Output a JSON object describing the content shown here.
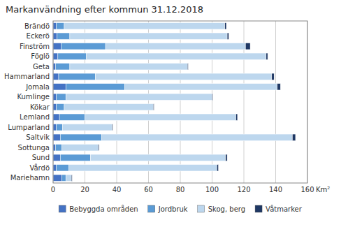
{
  "chart_data": {
    "type": "bar",
    "orientation": "horizontal",
    "stacked": true,
    "title": "Markanvändning efter kommun 31.12.2018",
    "categories": [
      "Brändö",
      "Eckerö",
      "Finström",
      "Föglö",
      "Geta",
      "Hammarland",
      "Jomala",
      "Kumlinge",
      "Kökar",
      "Lemland",
      "Lumparland",
      "Saltvik",
      "Sottunga",
      "Sund",
      "Vårdö",
      "Mariehamn"
    ],
    "series": [
      {
        "name": "Bebyggda områden",
        "color": "#4472C4",
        "values": [
          2.0,
          2.5,
          5.0,
          3.0,
          1.5,
          3.5,
          8.0,
          2.0,
          2.0,
          4.0,
          2.0,
          4.5,
          1.5,
          4.5,
          2.0,
          5.5
        ]
      },
      {
        "name": "Jordbruk",
        "color": "#5B9BD5",
        "values": [
          5.0,
          8.0,
          28.0,
          18.0,
          9.0,
          23.0,
          37.0,
          6.0,
          5.0,
          16.0,
          4.0,
          26.0,
          4.0,
          19.0,
          8.0,
          2.5
        ]
      },
      {
        "name": "Skog, berg",
        "color": "#BDD7EE",
        "values": [
          101.0,
          99.0,
          88.0,
          113.0,
          74.0,
          111.0,
          96.0,
          92.0,
          56.0,
          95.0,
          31.0,
          120.0,
          23.0,
          85.0,
          93.0,
          3.5
        ]
      },
      {
        "name": "Våtmarker",
        "color": "#1F3864",
        "values": [
          1.0,
          1.0,
          3.0,
          1.0,
          0.5,
          1.5,
          2.0,
          0.5,
          0.5,
          1.0,
          0.5,
          2.0,
          0.5,
          1.0,
          1.0,
          0.5
        ]
      }
    ],
    "xlabel": "Km²",
    "xlim": [
      0,
      160
    ],
    "xticks": [
      0,
      20,
      40,
      60,
      80,
      100,
      120,
      140,
      160
    ],
    "grid": true,
    "legend": "bottom"
  }
}
